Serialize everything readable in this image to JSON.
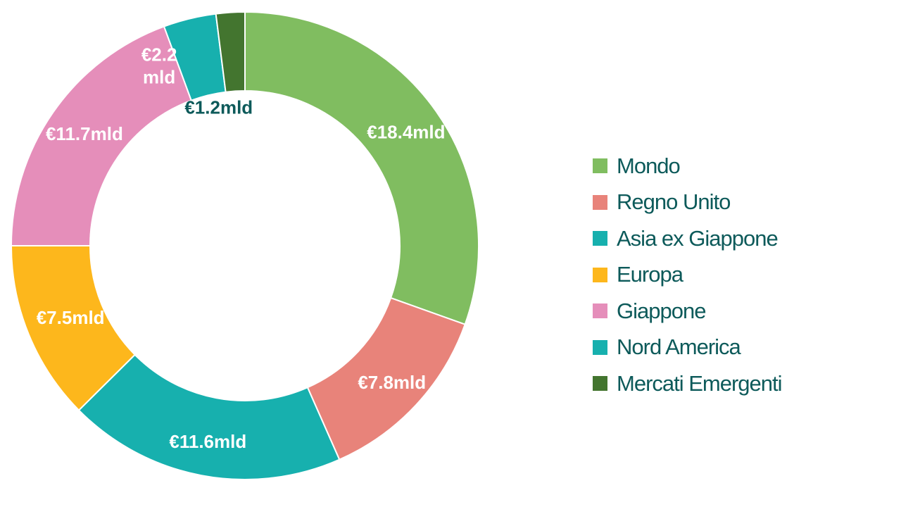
{
  "chart_data": {
    "type": "donut",
    "unit": "mld",
    "slices": [
      {
        "name": "Mondo",
        "value": 18.4,
        "label": "€18.4mld",
        "color": "#80BD60",
        "label_color": "#FFFFFF"
      },
      {
        "name": "Regno Unito",
        "value": 7.8,
        "label": "€7.8mld",
        "color": "#E8837A",
        "label_color": "#FFFFFF"
      },
      {
        "name": "Asia ex Giappone",
        "value": 11.6,
        "label": "€11.6mld",
        "color": "#17B0AE",
        "label_color": "#FFFFFF"
      },
      {
        "name": "Europa",
        "value": 7.5,
        "label": "€7.5mld",
        "color": "#FDB71C",
        "label_color": "#FFFFFF"
      },
      {
        "name": "Giappone",
        "value": 11.7,
        "label": "€11.7mld",
        "color": "#E58EBA",
        "label_color": "#FFFFFF"
      },
      {
        "name": "Nord America",
        "value": 2.2,
        "label": [
          "€2.2",
          "mld"
        ],
        "color": "#17B0AE",
        "label_color": "#FFFFFF"
      },
      {
        "name": "Mercati Emergenti",
        "value": 1.2,
        "label": "€1.2mld",
        "color": "#43752F",
        "label_color": "#0D5A5A"
      }
    ],
    "legend": {
      "position": "right",
      "items": [
        "Mondo",
        "Regno Unito",
        "Asia ex Giappone",
        "Europa",
        "Giappone",
        "Nord America",
        "Mercati Emergenti"
      ]
    },
    "legend_text_color": "#0D5A5A"
  }
}
